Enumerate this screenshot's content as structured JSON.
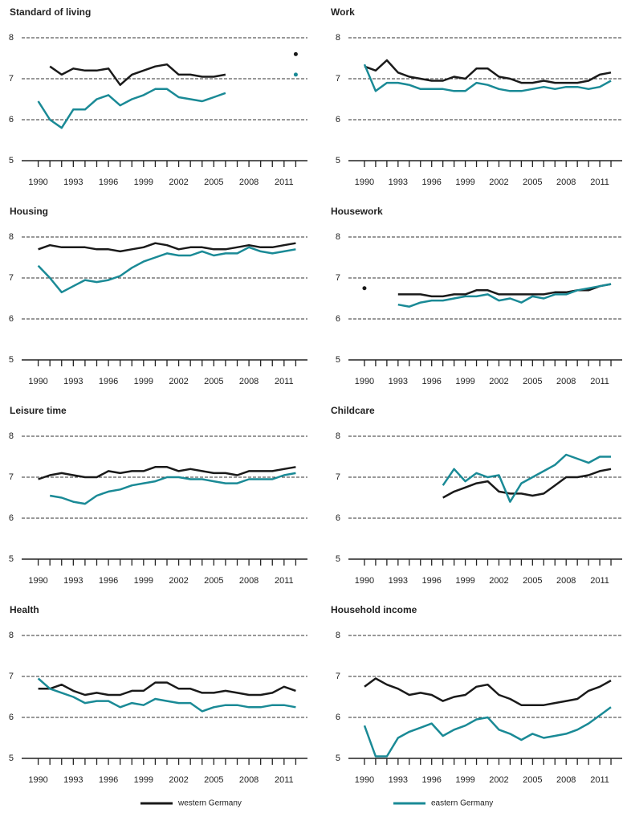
{
  "chart_data": [
    {
      "type": "line",
      "title": "Standard of living",
      "x": [
        1990,
        1991,
        1992,
        1993,
        1994,
        1995,
        1996,
        1997,
        1998,
        1999,
        2000,
        2001,
        2002,
        2003,
        2004,
        2005,
        2006,
        2007,
        2008,
        2009,
        2010,
        2011,
        2012
      ],
      "xlim": [
        1989,
        2013
      ],
      "xticks": [
        1990,
        1993,
        1996,
        1999,
        2002,
        2005,
        2008,
        2011
      ],
      "ylim": [
        5,
        8
      ],
      "yticks": [
        5,
        6,
        7,
        8
      ],
      "grid": true,
      "series": [
        {
          "name": "western Germany",
          "color": "#1a1a1a",
          "values": [
            null,
            7.3,
            7.1,
            7.25,
            7.2,
            7.2,
            7.25,
            6.85,
            7.1,
            7.2,
            7.3,
            7.35,
            7.1,
            7.1,
            7.05,
            7.05,
            7.1,
            null,
            null,
            null,
            null,
            null,
            7.6
          ]
        },
        {
          "name": "eastern Germany",
          "color": "#1a8a96",
          "values": [
            6.45,
            6.0,
            5.8,
            6.25,
            6.25,
            6.5,
            6.6,
            6.35,
            6.5,
            6.6,
            6.75,
            6.75,
            6.55,
            6.5,
            6.45,
            6.55,
            6.65,
            null,
            null,
            null,
            null,
            null,
            7.1
          ]
        }
      ]
    },
    {
      "type": "line",
      "title": "Work",
      "x": [
        1990,
        1991,
        1992,
        1993,
        1994,
        1995,
        1996,
        1997,
        1998,
        1999,
        2000,
        2001,
        2002,
        2003,
        2004,
        2005,
        2006,
        2007,
        2008,
        2009,
        2010,
        2011,
        2012
      ],
      "xlim": [
        1989,
        2013
      ],
      "xticks": [
        1990,
        1993,
        1996,
        1999,
        2002,
        2005,
        2008,
        2011
      ],
      "ylim": [
        5,
        8
      ],
      "yticks": [
        5,
        6,
        7,
        8
      ],
      "grid": true,
      "series": [
        {
          "name": "western Germany",
          "color": "#1a1a1a",
          "values": [
            7.3,
            7.2,
            7.45,
            7.15,
            7.05,
            7.0,
            6.95,
            6.95,
            7.05,
            7.0,
            7.25,
            7.25,
            7.05,
            7.0,
            6.9,
            6.9,
            6.95,
            6.9,
            6.9,
            6.9,
            6.95,
            7.1,
            7.15
          ]
        },
        {
          "name": "eastern Germany",
          "color": "#1a8a96",
          "values": [
            7.35,
            6.7,
            6.9,
            6.9,
            6.85,
            6.75,
            6.75,
            6.75,
            6.7,
            6.7,
            6.9,
            6.85,
            6.75,
            6.7,
            6.7,
            6.75,
            6.8,
            6.75,
            6.8,
            6.8,
            6.75,
            6.8,
            6.95
          ]
        }
      ]
    },
    {
      "type": "line",
      "title": "Housing",
      "x": [
        1990,
        1991,
        1992,
        1993,
        1994,
        1995,
        1996,
        1997,
        1998,
        1999,
        2000,
        2001,
        2002,
        2003,
        2004,
        2005,
        2006,
        2007,
        2008,
        2009,
        2010,
        2011,
        2012
      ],
      "xlim": [
        1989,
        2013
      ],
      "xticks": [
        1990,
        1993,
        1996,
        1999,
        2002,
        2005,
        2008,
        2011
      ],
      "ylim": [
        5,
        8
      ],
      "yticks": [
        5,
        6,
        7,
        8
      ],
      "grid": true,
      "series": [
        {
          "name": "western Germany",
          "color": "#1a1a1a",
          "values": [
            7.7,
            7.8,
            7.75,
            7.75,
            7.75,
            7.7,
            7.7,
            7.65,
            7.7,
            7.75,
            7.85,
            7.8,
            7.7,
            7.75,
            7.75,
            7.7,
            7.7,
            7.75,
            7.8,
            7.75,
            7.75,
            7.8,
            7.85
          ]
        },
        {
          "name": "eastern Germany",
          "color": "#1a8a96",
          "values": [
            7.3,
            7.0,
            6.65,
            6.8,
            6.95,
            6.9,
            6.95,
            7.05,
            7.25,
            7.4,
            7.5,
            7.6,
            7.55,
            7.55,
            7.65,
            7.55,
            7.6,
            7.6,
            7.75,
            7.65,
            7.6,
            7.65,
            7.7
          ]
        }
      ]
    },
    {
      "type": "line",
      "title": "Housework",
      "x": [
        1990,
        1991,
        1992,
        1993,
        1994,
        1995,
        1996,
        1997,
        1998,
        1999,
        2000,
        2001,
        2002,
        2003,
        2004,
        2005,
        2006,
        2007,
        2008,
        2009,
        2010,
        2011,
        2012
      ],
      "xlim": [
        1989,
        2013
      ],
      "xticks": [
        1990,
        1993,
        1996,
        1999,
        2002,
        2005,
        2008,
        2011
      ],
      "ylim": [
        5,
        8
      ],
      "yticks": [
        5,
        6,
        7,
        8
      ],
      "grid": true,
      "series": [
        {
          "name": "western Germany",
          "color": "#1a1a1a",
          "values": [
            6.75,
            null,
            null,
            6.6,
            6.6,
            6.6,
            6.55,
            6.55,
            6.6,
            6.6,
            6.7,
            6.7,
            6.6,
            6.6,
            6.6,
            6.6,
            6.6,
            6.65,
            6.65,
            6.7,
            6.7,
            6.8,
            6.85
          ]
        },
        {
          "name": "eastern Germany",
          "color": "#1a8a96",
          "values": [
            null,
            null,
            null,
            6.35,
            6.3,
            6.4,
            6.45,
            6.45,
            6.5,
            6.55,
            6.55,
            6.6,
            6.45,
            6.5,
            6.4,
            6.55,
            6.5,
            6.6,
            6.6,
            6.7,
            6.75,
            6.8,
            6.85
          ]
        }
      ]
    },
    {
      "type": "line",
      "title": "Leisure time",
      "x": [
        1990,
        1991,
        1992,
        1993,
        1994,
        1995,
        1996,
        1997,
        1998,
        1999,
        2000,
        2001,
        2002,
        2003,
        2004,
        2005,
        2006,
        2007,
        2008,
        2009,
        2010,
        2011,
        2012
      ],
      "xlim": [
        1989,
        2013
      ],
      "xticks": [
        1990,
        1993,
        1996,
        1999,
        2002,
        2005,
        2008,
        2011
      ],
      "ylim": [
        5,
        8
      ],
      "yticks": [
        5,
        6,
        7,
        8
      ],
      "grid": true,
      "series": [
        {
          "name": "western Germany",
          "color": "#1a1a1a",
          "values": [
            6.95,
            7.05,
            7.1,
            7.05,
            7.0,
            7.0,
            7.15,
            7.1,
            7.15,
            7.15,
            7.25,
            7.25,
            7.15,
            7.2,
            7.15,
            7.1,
            7.1,
            7.05,
            7.15,
            7.15,
            7.15,
            7.2,
            7.25
          ]
        },
        {
          "name": "eastern Germany",
          "color": "#1a8a96",
          "values": [
            null,
            6.55,
            6.5,
            6.4,
            6.35,
            6.55,
            6.65,
            6.7,
            6.8,
            6.85,
            6.9,
            7.0,
            7.0,
            6.95,
            6.95,
            6.9,
            6.85,
            6.85,
            6.95,
            6.95,
            6.95,
            7.05,
            7.1
          ]
        }
      ]
    },
    {
      "type": "line",
      "title": "Childcare",
      "x": [
        1990,
        1991,
        1992,
        1993,
        1994,
        1995,
        1996,
        1997,
        1998,
        1999,
        2000,
        2001,
        2002,
        2003,
        2004,
        2005,
        2006,
        2007,
        2008,
        2009,
        2010,
        2011,
        2012
      ],
      "xlim": [
        1989,
        2013
      ],
      "xticks": [
        1990,
        1993,
        1996,
        1999,
        2002,
        2005,
        2008,
        2011
      ],
      "ylim": [
        5,
        8
      ],
      "yticks": [
        5,
        6,
        7,
        8
      ],
      "grid": true,
      "series": [
        {
          "name": "western Germany",
          "color": "#1a1a1a",
          "values": [
            null,
            null,
            null,
            null,
            null,
            null,
            null,
            6.5,
            6.65,
            6.75,
            6.85,
            6.9,
            6.65,
            6.6,
            6.6,
            6.55,
            6.6,
            6.8,
            7.0,
            7.0,
            7.05,
            7.15,
            7.2
          ]
        },
        {
          "name": "eastern Germany",
          "color": "#1a8a96",
          "values": [
            null,
            null,
            null,
            null,
            null,
            null,
            null,
            6.8,
            7.2,
            6.9,
            7.1,
            7.0,
            7.05,
            6.4,
            6.85,
            7.0,
            7.15,
            7.3,
            7.55,
            7.45,
            7.35,
            7.5,
            7.5
          ]
        }
      ]
    },
    {
      "type": "line",
      "title": "Health",
      "x": [
        1990,
        1991,
        1992,
        1993,
        1994,
        1995,
        1996,
        1997,
        1998,
        1999,
        2000,
        2001,
        2002,
        2003,
        2004,
        2005,
        2006,
        2007,
        2008,
        2009,
        2010,
        2011,
        2012
      ],
      "xlim": [
        1989,
        2013
      ],
      "xticks": [
        1990,
        1993,
        1996,
        1999,
        2002,
        2005,
        2008,
        2011
      ],
      "ylim": [
        5,
        8
      ],
      "yticks": [
        5,
        6,
        7,
        8
      ],
      "grid": true,
      "series": [
        {
          "name": "western Germany",
          "color": "#1a1a1a",
          "values": [
            6.7,
            6.7,
            6.8,
            6.65,
            6.55,
            6.6,
            6.55,
            6.55,
            6.65,
            6.65,
            6.85,
            6.85,
            6.7,
            6.7,
            6.6,
            6.6,
            6.65,
            6.6,
            6.55,
            6.55,
            6.6,
            6.75,
            6.65
          ]
        },
        {
          "name": "eastern Germany",
          "color": "#1a8a96",
          "values": [
            6.95,
            6.7,
            6.6,
            6.5,
            6.35,
            6.4,
            6.4,
            6.25,
            6.35,
            6.3,
            6.45,
            6.4,
            6.35,
            6.35,
            6.15,
            6.25,
            6.3,
            6.3,
            6.25,
            6.25,
            6.3,
            6.3,
            6.25
          ]
        }
      ]
    },
    {
      "type": "line",
      "title": "Household income",
      "x": [
        1990,
        1991,
        1992,
        1993,
        1994,
        1995,
        1996,
        1997,
        1998,
        1999,
        2000,
        2001,
        2002,
        2003,
        2004,
        2005,
        2006,
        2007,
        2008,
        2009,
        2010,
        2011,
        2012
      ],
      "xlim": [
        1989,
        2013
      ],
      "xticks": [
        1990,
        1993,
        1996,
        1999,
        2002,
        2005,
        2008,
        2011
      ],
      "ylim": [
        5,
        8
      ],
      "yticks": [
        5,
        6,
        7,
        8
      ],
      "grid": true,
      "series": [
        {
          "name": "western Germany",
          "color": "#1a1a1a",
          "values": [
            6.75,
            6.95,
            6.8,
            6.7,
            6.55,
            6.6,
            6.55,
            6.4,
            6.5,
            6.55,
            6.75,
            6.8,
            6.55,
            6.45,
            6.3,
            6.3,
            6.3,
            6.35,
            6.4,
            6.45,
            6.65,
            6.75,
            6.9
          ]
        },
        {
          "name": "eastern Germany",
          "color": "#1a8a96",
          "values": [
            5.8,
            5.05,
            5.05,
            5.5,
            5.65,
            5.75,
            5.85,
            5.55,
            5.7,
            5.8,
            5.95,
            6.0,
            5.7,
            5.6,
            5.45,
            5.6,
            5.5,
            5.55,
            5.6,
            5.7,
            5.85,
            6.05,
            6.25
          ]
        }
      ]
    }
  ]
}
